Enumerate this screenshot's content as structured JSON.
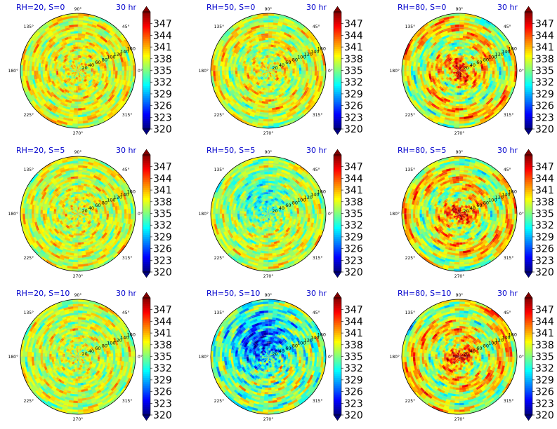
{
  "chart_data": {
    "type": "heatmap",
    "projection": "polar",
    "grid": true,
    "colormap": "jet",
    "angle_tick_labels": [
      "0°",
      "45°",
      "90°",
      "135°",
      "180°",
      "225°",
      "270°",
      "315°"
    ],
    "radial_tick_labels": [
      "20",
      "40",
      "60",
      "80",
      "100",
      "120",
      "140",
      "160"
    ],
    "radial_ticks": [
      20,
      40,
      60,
      80,
      100,
      120,
      140,
      160
    ],
    "rlim": [
      0,
      160
    ],
    "colorbar": {
      "ticks": [
        "347",
        "344",
        "341",
        "338",
        "335",
        "332",
        "329",
        "326",
        "323",
        "320"
      ],
      "range": [
        320,
        350
      ],
      "extend": "both"
    },
    "panels": [
      {
        "id": "p1",
        "title": "RH=20, S=0",
        "time": "30 hr",
        "pattern": "noise",
        "mean": 338,
        "amp": 6,
        "seed": 11
      },
      {
        "id": "p2",
        "title": "RH=50, S=0",
        "time": "30 hr",
        "pattern": "spiral-weak",
        "mean": 337.5,
        "amp": 6,
        "seed": 23
      },
      {
        "id": "p3",
        "title": "RH=80, S=0",
        "time": "30 hr",
        "pattern": "spiral",
        "mean": 338,
        "amp": 7,
        "seed": 37
      },
      {
        "id": "p4",
        "title": "RH=20, S=5",
        "time": "30 hr",
        "pattern": "noise",
        "mean": 337.5,
        "amp": 6,
        "seed": 41
      },
      {
        "id": "p5",
        "title": "RH=50, S=5",
        "time": "30 hr",
        "pattern": "sheared",
        "mean": 337,
        "amp": 6,
        "seed": 53
      },
      {
        "id": "p6",
        "title": "RH=80, S=5",
        "time": "30 hr",
        "pattern": "spiral",
        "mean": 338,
        "amp": 7,
        "seed": 67
      },
      {
        "id": "p7",
        "title": "RH=20, S=10",
        "time": "30 hr",
        "pattern": "noise",
        "mean": 337,
        "amp": 6,
        "seed": 71
      },
      {
        "id": "p8",
        "title": "RH=50, S=10",
        "time": "30 hr",
        "pattern": "sheared-strong",
        "mean": 335,
        "amp": 8,
        "seed": 83
      },
      {
        "id": "p9",
        "title": "RH=80, S=10",
        "time": "30 hr",
        "pattern": "spiral",
        "mean": 338,
        "amp": 7,
        "seed": 97
      }
    ]
  }
}
